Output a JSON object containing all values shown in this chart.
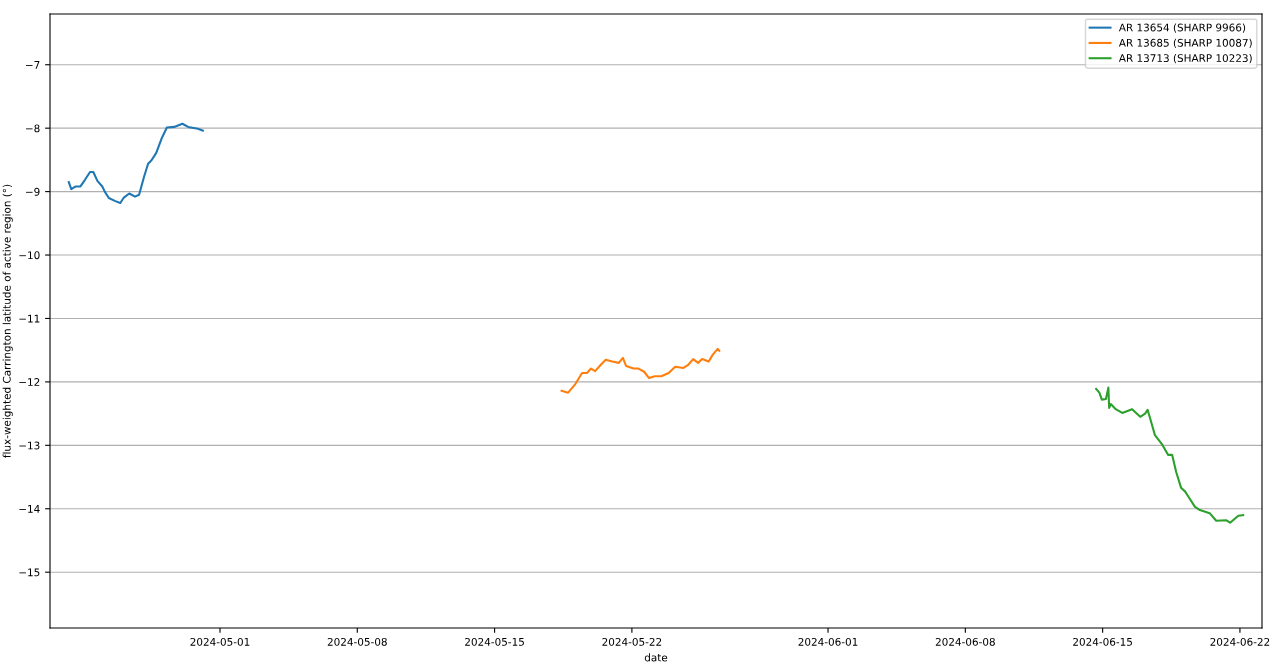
{
  "chart_data": {
    "type": "line",
    "xlabel": "date",
    "ylabel": "flux-weighted Carrington latitude of active region (°)",
    "xlim": [
      "2024-04-22T08:00",
      "2024-06-23T03:00"
    ],
    "ylim": [
      -15.88,
      -6.2
    ],
    "xticks": [
      "2024-05-01",
      "2024-05-08",
      "2024-05-15",
      "2024-05-22",
      "2024-06-01",
      "2024-06-08",
      "2024-06-15",
      "2024-06-22"
    ],
    "yticks": [
      {
        "value": -15,
        "label": "−15"
      },
      {
        "value": -14,
        "label": "−14"
      },
      {
        "value": -13,
        "label": "−13"
      },
      {
        "value": -12,
        "label": "−12"
      },
      {
        "value": -11,
        "label": "−11"
      },
      {
        "value": -10,
        "label": "−10"
      },
      {
        "value": -9,
        "label": "−9"
      },
      {
        "value": -8,
        "label": "−8"
      },
      {
        "value": -7,
        "label": "−7"
      }
    ],
    "grid": "y",
    "legend": "top right",
    "marker": "none",
    "line_style": "solid",
    "series": [
      {
        "name": "AR 13654 (SHARP 9966)",
        "color": "#1f77b4",
        "x": [
          "2024-04-23T07:00",
          "2024-04-23T10:00",
          "2024-04-23T15:00",
          "2024-04-23T21:00",
          "2024-04-24T03:00",
          "2024-04-24T09:00",
          "2024-04-24T13:00",
          "2024-04-24T18:00",
          "2024-04-25T00:00",
          "2024-04-25T03:00",
          "2024-04-25T08:00",
          "2024-04-25T16:00",
          "2024-04-25T22:00",
          "2024-04-26T02:00",
          "2024-04-26T09:00",
          "2024-04-26T16:00",
          "2024-04-26T21:00",
          "2024-04-27T03:00",
          "2024-04-27T08:00",
          "2024-04-27T12:00",
          "2024-04-27T18:00",
          "2024-04-28T01:00",
          "2024-04-28T07:00",
          "2024-04-28T16:00",
          "2024-04-29T02:00",
          "2024-04-29T09:00",
          "2024-04-29T21:00",
          "2024-04-30T03:00"
        ],
        "values": [
          -8.85,
          -8.96,
          -8.92,
          -8.92,
          -8.81,
          -8.69,
          -8.69,
          -8.83,
          -8.92,
          -9.0,
          -9.1,
          -9.15,
          -9.18,
          -9.1,
          -9.03,
          -9.08,
          -9.05,
          -8.77,
          -8.56,
          -8.51,
          -8.39,
          -8.15,
          -7.99,
          -7.98,
          -7.93,
          -7.98,
          -8.01,
          -8.04
        ]
      },
      {
        "name": "AR 13685 (SHARP 10087)",
        "color": "#ff7f0e",
        "x": [
          "2024-05-18T10:00",
          "2024-05-18T18:00",
          "2024-05-19T03:00",
          "2024-05-19T11:00",
          "2024-05-19T17:00",
          "2024-05-19T22:00",
          "2024-05-20T03:00",
          "2024-05-20T10:00",
          "2024-05-20T16:00",
          "2024-05-21T00:00",
          "2024-05-21T08:00",
          "2024-05-21T13:00",
          "2024-05-21T17:00",
          "2024-05-22T02:00",
          "2024-05-22T08:00",
          "2024-05-22T15:00",
          "2024-05-22T21:00",
          "2024-05-23T04:00",
          "2024-05-23T12:00",
          "2024-05-23T21:00",
          "2024-05-24T05:00",
          "2024-05-24T15:00",
          "2024-05-24T21:00",
          "2024-05-25T03:00",
          "2024-05-25T09:00",
          "2024-05-25T14:00",
          "2024-05-25T22:00",
          "2024-05-26T03:00",
          "2024-05-26T09:00",
          "2024-05-26T11:00"
        ],
        "values": [
          -12.14,
          -12.17,
          -12.03,
          -11.86,
          -11.86,
          -11.79,
          -11.83,
          -11.73,
          -11.65,
          -11.68,
          -11.7,
          -11.62,
          -11.75,
          -11.79,
          -11.79,
          -11.84,
          -11.94,
          -11.91,
          -11.91,
          -11.86,
          -11.76,
          -11.78,
          -11.73,
          -11.64,
          -11.7,
          -11.64,
          -11.68,
          -11.57,
          -11.48,
          -11.51
        ]
      },
      {
        "name": "AR 13713 (SHARP 10223)",
        "color": "#2ca02c",
        "x": [
          "2024-06-14T16:00",
          "2024-06-14T20:00",
          "2024-06-14T23:00",
          "2024-06-15T04:00",
          "2024-06-15T07:00",
          "2024-06-15T08:00",
          "2024-06-15T10:00",
          "2024-06-15T16:00",
          "2024-06-16T00:00",
          "2024-06-16T12:00",
          "2024-06-16T17:00",
          "2024-06-16T22:00",
          "2024-06-17T04:00",
          "2024-06-17T07:00",
          "2024-06-17T10:00",
          "2024-06-17T16:00",
          "2024-06-18T01:00",
          "2024-06-18T08:00",
          "2024-06-18T13:00",
          "2024-06-18T18:00",
          "2024-06-19T00:00",
          "2024-06-19T05:00",
          "2024-06-19T09:00",
          "2024-06-19T17:00",
          "2024-06-19T23:00",
          "2024-06-20T11:00",
          "2024-06-20T19:00",
          "2024-06-21T07:00",
          "2024-06-21T12:00",
          "2024-06-21T22:00",
          "2024-06-22T04:00"
        ],
        "values": [
          -12.11,
          -12.17,
          -12.28,
          -12.27,
          -12.09,
          -12.41,
          -12.35,
          -12.43,
          -12.49,
          -12.43,
          -12.49,
          -12.55,
          -12.5,
          -12.44,
          -12.57,
          -12.84,
          -12.99,
          -13.15,
          -13.15,
          -13.42,
          -13.67,
          -13.73,
          -13.81,
          -13.97,
          -14.02,
          -14.07,
          -14.19,
          -14.18,
          -14.22,
          -14.11,
          -14.1
        ]
      }
    ]
  }
}
